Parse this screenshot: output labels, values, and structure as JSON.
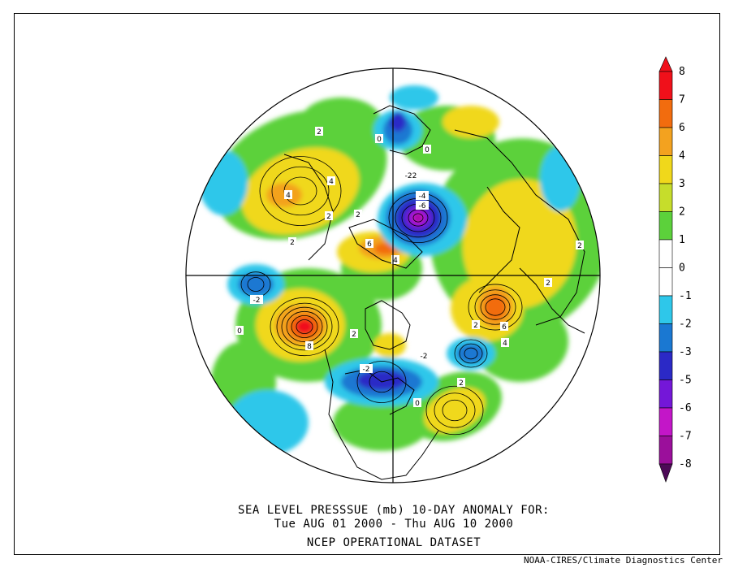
{
  "title": {
    "line1": "SEA LEVEL PRESSSUE (mb)   10-DAY ANOMALY FOR:",
    "line2": "Tue AUG 01 2000 - Thu AUG 10 2000",
    "line3": "NCEP OPERATIONAL DATASET"
  },
  "credit": "NOAA-CIRES/Climate Diagnostics Center",
  "colorbar": {
    "bins": [
      {
        "label": "8",
        "color": "#f0101a"
      },
      {
        "label": "7",
        "color": "#f26c0e"
      },
      {
        "label": "6",
        "color": "#f3a21f"
      },
      {
        "label": "4",
        "color": "#f0d81b"
      },
      {
        "label": "3",
        "color": "#c6dd2b"
      },
      {
        "label": "2",
        "color": "#5cd13b"
      },
      {
        "label": "1",
        "color": "#ffffff"
      },
      {
        "label": "0",
        "color": "#ffffff"
      },
      {
        "label": "-1",
        "color": "#2ec7ea"
      },
      {
        "label": "-2",
        "color": "#1a78d2"
      },
      {
        "label": "-3",
        "color": "#2b29c6"
      },
      {
        "label": "-5",
        "color": "#7417d8"
      },
      {
        "label": "-6",
        "color": "#c316c8"
      },
      {
        "label": "-7",
        "color": "#9b0f9b"
      },
      {
        "label": "-8",
        "color": "#4d0a57"
      }
    ]
  },
  "anomaly_features": [
    {
      "kind": "high",
      "label": "8",
      "color": "#f0101a"
    },
    {
      "kind": "high",
      "label": "6",
      "color": "#f26c0e"
    },
    {
      "kind": "high",
      "label": "4",
      "color": "#f0d81b"
    },
    {
      "kind": "high",
      "label": "2",
      "color": "#5cd13b"
    },
    {
      "kind": "low",
      "label": "-2",
      "color": "#2b29c6"
    },
    {
      "kind": "low",
      "label": "-4",
      "color": "#2b29c6"
    },
    {
      "kind": "low",
      "label": "-6",
      "color": "#c316c8"
    },
    {
      "kind": "low",
      "label": "-22",
      "color": "#2b29c6"
    },
    {
      "kind": "zero",
      "label": "0",
      "color": "#ffffff"
    }
  ]
}
